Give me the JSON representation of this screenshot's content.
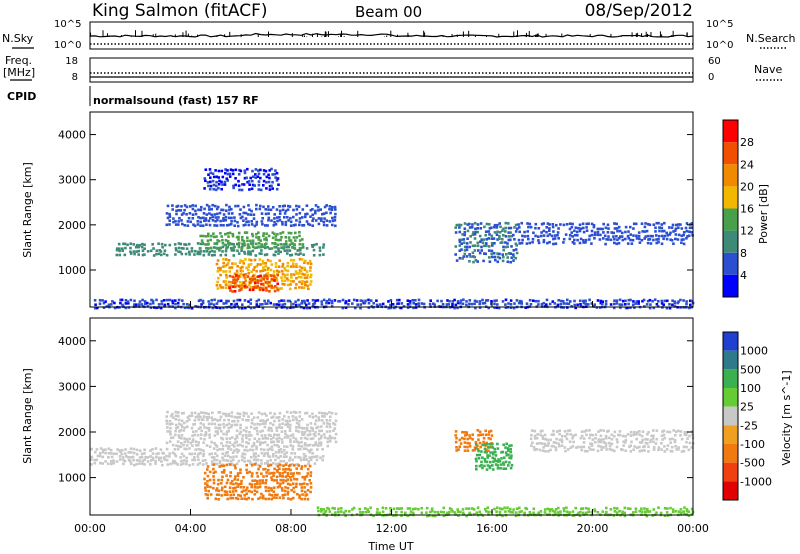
{
  "header": {
    "station": "King Salmon (fitACF)",
    "beam": "Beam 00",
    "date": "08/Sep/2012"
  },
  "noise_panel": {
    "left_label": "N.Sky",
    "right_label": "N.Search",
    "left_ticks": [
      "10^5",
      "10^0"
    ],
    "right_ticks": [
      "10^5",
      "10^0"
    ]
  },
  "freq_panel": {
    "left_label_1": "Freq.",
    "left_label_2": "[MHz]",
    "right_label": "Nave",
    "left_ticks": [
      "18",
      "8"
    ],
    "right_ticks": [
      "60",
      "0"
    ]
  },
  "cpid": {
    "label": "CPID",
    "value": "normalsound (fast) 157 RF"
  },
  "colors": {
    "power_scale": [
      "#0000ff",
      "#2b4fd0",
      "#3e8a78",
      "#4aa04a",
      "#f2b800",
      "#f08a00",
      "#f05000",
      "#ff0000"
    ],
    "velocity_scale": [
      "#2040d0",
      "#2f7a8a",
      "#3ab050",
      "#66cc33",
      "#c8c8c8",
      "#f0a020",
      "#f07a10",
      "#f04010",
      "#e00000"
    ]
  },
  "chart_data": [
    {
      "type": "heatmap",
      "name": "power",
      "ylabel": "Slant Range [km]",
      "yticks": [
        "1000",
        "2000",
        "3000",
        "4000"
      ],
      "ylim": [
        180,
        4500
      ],
      "xlim": [
        0,
        24
      ],
      "colorbar": {
        "label": "Power [dB]",
        "ticks": [
          "4",
          "8",
          "12",
          "16",
          "20",
          "24",
          "28"
        ],
        "range": [
          0,
          32
        ]
      },
      "regions": [
        {
          "t0": 1.0,
          "t1": 9.3,
          "r0": 1350,
          "r1": 1650,
          "value": 10
        },
        {
          "t0": 4.3,
          "t1": 8.5,
          "r0": 1500,
          "r1": 1900,
          "value": 14
        },
        {
          "t0": 5.0,
          "t1": 8.8,
          "r0": 600,
          "r1": 1300,
          "value": 20
        },
        {
          "t0": 5.5,
          "t1": 7.5,
          "r0": 550,
          "r1": 950,
          "value": 27
        },
        {
          "t0": 3.0,
          "t1": 9.8,
          "r0": 2000,
          "r1": 2500,
          "value": 6
        },
        {
          "t0": 4.5,
          "t1": 7.5,
          "r0": 2800,
          "r1": 3300,
          "value": 4
        },
        {
          "t0": 14.5,
          "t1": 17.0,
          "r0": 1200,
          "r1": 2100,
          "value": 8
        },
        {
          "t0": 17.0,
          "t1": 24.0,
          "r0": 1600,
          "r1": 2100,
          "value": 6
        },
        {
          "t0": 0.0,
          "t1": 24.0,
          "r0": 180,
          "r1": 400,
          "value": 5
        }
      ]
    },
    {
      "type": "heatmap",
      "name": "velocity",
      "ylabel": "Slant Range [km]",
      "yticks": [
        "1000",
        "2000",
        "3000",
        "4000"
      ],
      "xticks": [
        "00:00",
        "04:00",
        "08:00",
        "12:00",
        "16:00",
        "20:00",
        "00:00"
      ],
      "xlabel": "Time UT",
      "ylim": [
        180,
        4500
      ],
      "xlim": [
        0,
        24
      ],
      "colorbar": {
        "label": "Velocity [m s^-1]",
        "ticks": [
          "1000",
          "500",
          "100",
          "25",
          "-25",
          "-100",
          "-500",
          "-1000"
        ]
      },
      "regions": [
        {
          "t0": 0.0,
          "t1": 9.3,
          "r0": 1300,
          "r1": 1700,
          "value": 0
        },
        {
          "t0": 3.0,
          "t1": 9.8,
          "r0": 1700,
          "r1": 2500,
          "value": 0
        },
        {
          "t0": 4.5,
          "t1": 8.8,
          "r0": 550,
          "r1": 1350,
          "value": -150
        },
        {
          "t0": 14.5,
          "t1": 16.0,
          "r0": 1600,
          "r1": 2100,
          "value": -120
        },
        {
          "t0": 15.3,
          "t1": 16.8,
          "r0": 1200,
          "r1": 1800,
          "value": 150
        },
        {
          "t0": 17.5,
          "t1": 24.0,
          "r0": 1600,
          "r1": 2100,
          "value": 0
        },
        {
          "t0": 9.0,
          "t1": 24.0,
          "r0": 180,
          "r1": 400,
          "value": 80
        }
      ]
    }
  ]
}
